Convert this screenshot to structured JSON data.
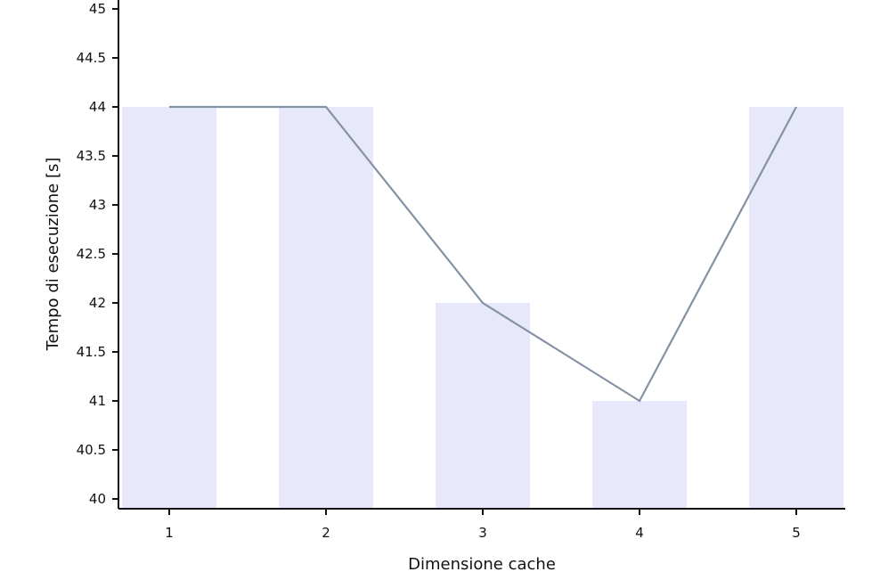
{
  "chart_data": {
    "type": "bar",
    "categories": [
      "1",
      "2",
      "3",
      "4",
      "5"
    ],
    "values": [
      44,
      44,
      42,
      41,
      44
    ],
    "line_values": [
      44,
      44,
      42,
      41,
      44
    ],
    "title": "",
    "xlabel": "Dimensione cache",
    "ylabel": "Tempo di esecuzione [s]",
    "ylim": [
      40,
      45
    ],
    "y_ticks": [
      "40",
      "40.5",
      "41",
      "41.5",
      "42",
      "42.5",
      "43",
      "43.5",
      "44",
      "44.5",
      "45"
    ],
    "grid": false,
    "colors": {
      "bar": "#e8e8fc",
      "line": "#8592a3",
      "axis": "#111111"
    }
  }
}
